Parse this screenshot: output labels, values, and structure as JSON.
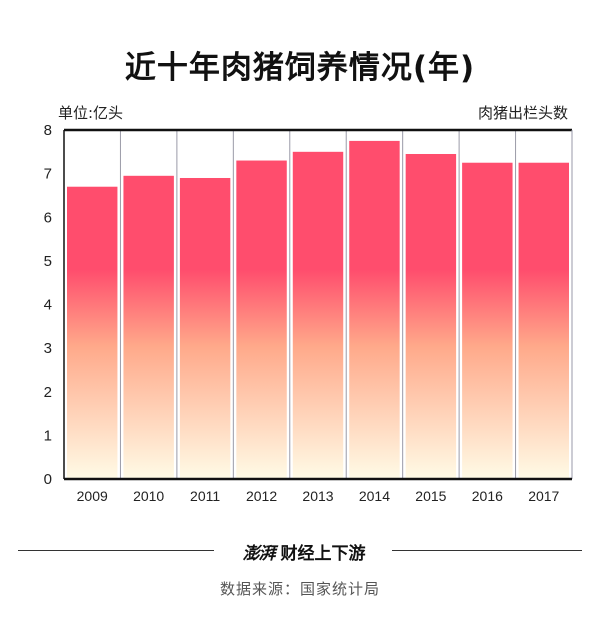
{
  "title": "近十年肉猪饲养情况(年)",
  "unit_label": "单位:亿头",
  "series_label": "肉猪出栏头数",
  "brand": {
    "logo": "澎湃",
    "text": "财经上下游"
  },
  "source": "数据来源：国家统计局",
  "colors": {
    "bar_top": "#ff4d6d",
    "bar_mid": "#ffa98a",
    "bar_bottom": "#fffbe6",
    "axis": "#111111",
    "grid": "#9a9aa8"
  },
  "chart_data": {
    "type": "bar",
    "categories": [
      "2009",
      "2010",
      "2011",
      "2012",
      "2013",
      "2014",
      "2015",
      "2016",
      "2017"
    ],
    "values": [
      6.7,
      6.95,
      6.9,
      7.3,
      7.5,
      7.75,
      7.45,
      7.25,
      7.25
    ],
    "yticks": [
      "0",
      "1",
      "2",
      "3",
      "4",
      "5",
      "6",
      "7",
      "8"
    ],
    "ylim": [
      0,
      8
    ],
    "grid": "vertical separators",
    "legend": "none"
  }
}
